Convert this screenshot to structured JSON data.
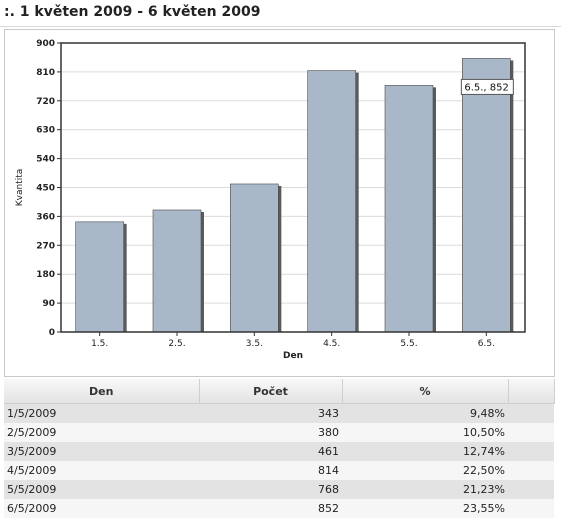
{
  "page_title": ":. 1 květen 2009 - 6 květen 2009",
  "chart_data": {
    "type": "bar",
    "categories": [
      "1.5.",
      "2.5.",
      "3.5.",
      "4.5.",
      "5.5.",
      "6.5."
    ],
    "values": [
      343,
      380,
      461,
      814,
      768,
      852
    ],
    "xlabel": "Den",
    "ylabel": "Kvantita",
    "ylim": [
      0,
      900
    ],
    "yticks": [
      0,
      90,
      180,
      270,
      360,
      450,
      540,
      630,
      720,
      810,
      900
    ],
    "grid": true,
    "tooltip": {
      "text": "6.5., 852",
      "category": "6.5."
    },
    "colors": {
      "bar": "#a9b8c8",
      "bar_edge": "#4a4a4a",
      "grid": "#dcdcdc"
    }
  },
  "table": {
    "columns": [
      "Den",
      "Počet",
      "%"
    ],
    "rows": [
      [
        "1/5/2009",
        "343",
        "9,48%"
      ],
      [
        "2/5/2009",
        "380",
        "10,50%"
      ],
      [
        "3/5/2009",
        "461",
        "12,74%"
      ],
      [
        "4/5/2009",
        "814",
        "22,50%"
      ],
      [
        "5/5/2009",
        "768",
        "21,23%"
      ],
      [
        "6/5/2009",
        "852",
        "23,55%"
      ]
    ]
  }
}
